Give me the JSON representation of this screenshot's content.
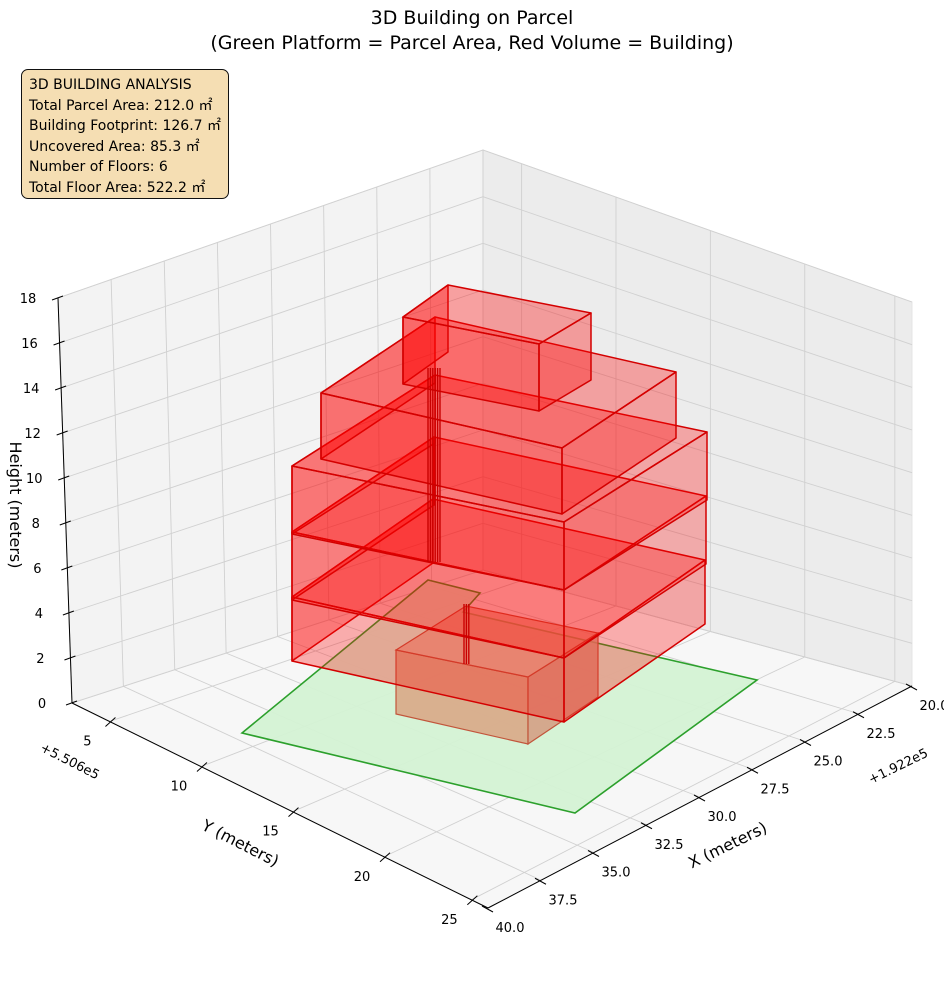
{
  "title": {
    "line1": "3D Building on Parcel",
    "line2": "(Green Platform = Parcel Area, Red Volume = Building)"
  },
  "info_box": {
    "heading": "3D BUILDING ANALYSIS",
    "lines": [
      "Total Parcel Area: 212.0 ㎡",
      "Building Footprint: 126.7 ㎡",
      "Uncovered Area: 85.3 ㎡",
      "Number of Floors: 6",
      "Total Floor Area: 522.2 ㎡"
    ]
  },
  "colors": {
    "parcel_fill": "#d4f2d4",
    "parcel_edge": "#2ca02c",
    "building_fill": "#ff0000",
    "building_edge": "#d40000",
    "info_bg": "#f5deb3",
    "pane": "#f2f2f2",
    "grid": "#d0d0d0"
  },
  "chart_data": {
    "type": "3d-surface",
    "xlabel": "X (meters)",
    "ylabel": "Y (meters)",
    "zlabel": "Height (meters)",
    "x_offset": "+1.922e5",
    "y_offset": "+5.506e5",
    "x_ticks": [
      "20.0",
      "22.5",
      "25.0",
      "27.5",
      "30.0",
      "32.5",
      "35.0",
      "37.5",
      "40.0"
    ],
    "y_ticks": [
      "5",
      "10",
      "15",
      "20",
      "25"
    ],
    "z_ticks": [
      "0",
      "2",
      "4",
      "6",
      "8",
      "10",
      "12",
      "14",
      "16",
      "18"
    ],
    "zlim": [
      0,
      18
    ],
    "grid": true,
    "series": [
      {
        "name": "Green Platform = Parcel Area",
        "kind": "parcel",
        "height": 0
      },
      {
        "name": "Red Volume = Building",
        "kind": "building",
        "floors": 6
      }
    ]
  }
}
